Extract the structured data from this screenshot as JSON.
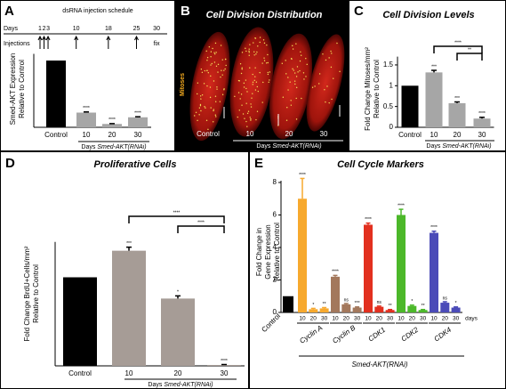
{
  "chart_data": [
    {
      "panel": "A",
      "type": "bar",
      "schedule": {
        "title": "dsRNA injection schedule",
        "days_label": "Days",
        "days": [
          1,
          2,
          3,
          10,
          18,
          25,
          30
        ],
        "injections_label": "Injections",
        "injection_days": [
          1,
          2,
          3,
          10,
          18,
          25
        ],
        "end_label": "fix"
      },
      "ylabel": [
        "Smed-AKT Expression",
        "Relative to Control"
      ],
      "categories": [
        "Control",
        "10",
        "20",
        "30"
      ],
      "values": [
        1,
        0.22,
        0.05,
        0.15
      ],
      "errors": [
        null,
        0.01,
        0.005,
        0.008
      ],
      "colors": [
        "#000000",
        "#a6a6a6",
        "#a6a6a6",
        "#a6a6a6"
      ],
      "significance": [
        null,
        "****",
        "****",
        "****"
      ],
      "ylim": [
        0,
        1.1
      ],
      "xgroup_prefix": "Days",
      "xgroup_name": "Smed-AKT(RNAi)"
    },
    {
      "panel": "B",
      "type": "image",
      "title": "Cell Division Distribution",
      "stain_label": "Mitoses",
      "categories": [
        "Control",
        "10",
        "20",
        "30"
      ],
      "xgroup_prefix": "Days",
      "xgroup_name": "Smed-AKT(RNAi)"
    },
    {
      "panel": "C",
      "type": "bar",
      "title": "Cell Division Levels",
      "ylabel": [
        "Fold Change Mitoses/mm²",
        "Relative to Control"
      ],
      "categories": [
        "Control",
        "10",
        "20",
        "30"
      ],
      "values": [
        1,
        1.32,
        0.58,
        0.21
      ],
      "errors": [
        null,
        0.05,
        0.03,
        0.03
      ],
      "colors": [
        "#000000",
        "#a6a6a6",
        "#a6a6a6",
        "#a6a6a6"
      ],
      "significance": [
        null,
        "***",
        "***",
        "****"
      ],
      "ylim": [
        0,
        1.7
      ],
      "yticks": [
        0,
        0.5,
        1,
        1.5
      ],
      "brackets": [
        {
          "between": [
            "10",
            "30"
          ],
          "label": "****"
        },
        {
          "between": [
            "20",
            "30"
          ],
          "label": "**"
        }
      ],
      "xgroup_prefix": "Days",
      "xgroup_name": "Smed-AKT(RNAi)"
    },
    {
      "panel": "D",
      "type": "bar",
      "title": "Proliferative Cells",
      "ylabel": [
        "Fold Change BrdU+Cells/mm²",
        "Relative to Control"
      ],
      "categories": [
        "Control",
        "10",
        "20",
        "30"
      ],
      "values": [
        1,
        1.3,
        0.76,
        0.01
      ],
      "errors": [
        null,
        0.04,
        0.03,
        0.005
      ],
      "colors": [
        "#000000",
        "#a69c96",
        "#a69c96",
        "#a69c96"
      ],
      "significance": [
        null,
        "***",
        "*",
        "****"
      ],
      "ylim": [
        0,
        1.4
      ],
      "brackets": [
        {
          "between": [
            "10",
            "30"
          ],
          "label": "****"
        },
        {
          "between": [
            "20",
            "30"
          ],
          "label": "****"
        }
      ],
      "xgroup_prefix": "Days",
      "xgroup_name": "Smed-AKT(RNAi)"
    },
    {
      "panel": "E",
      "type": "grouped_bar",
      "title": "Cell Cycle Markers",
      "ylabel": [
        "Fold Change in",
        "Gene  Expression",
        "Relative to Control"
      ],
      "ylim": [
        0,
        8
      ],
      "yticks": [
        0,
        2,
        4,
        6,
        8
      ],
      "control": {
        "name": "Control",
        "value": 1,
        "color": "#000000"
      },
      "days": [
        10,
        20,
        30
      ],
      "days_label": "days",
      "group_label": "Smed-AKT(RNAi)",
      "series": [
        {
          "name": "Cyclin A",
          "color": "#f7a92e",
          "values": [
            7.0,
            0.2,
            0.25
          ],
          "errors": [
            1.25,
            0.05,
            0.05
          ],
          "significance": [
            "****",
            "*",
            "**"
          ]
        },
        {
          "name": "Cyclin B",
          "color": "#a3785c",
          "values": [
            2.2,
            0.5,
            0.3
          ],
          "errors": [
            0.08,
            0.05,
            0.04
          ],
          "significance": [
            "****",
            "ns",
            "***"
          ]
        },
        {
          "name": "CDK1",
          "color": "#e2301f",
          "values": [
            5.4,
            0.35,
            0.15
          ],
          "errors": [
            0.1,
            0.04,
            0.03
          ],
          "significance": [
            "****",
            "ns",
            "**"
          ]
        },
        {
          "name": "CDK2",
          "color": "#4cb82a",
          "values": [
            6.0,
            0.4,
            0.15
          ],
          "errors": [
            0.35,
            0.05,
            0.03
          ],
          "significance": [
            "****",
            "*",
            "**"
          ]
        },
        {
          "name": "CDK4",
          "color": "#4b4bb8",
          "values": [
            4.9,
            0.6,
            0.3
          ],
          "errors": [
            0.1,
            0.06,
            0.04
          ],
          "significance": [
            "****",
            "ns",
            "*"
          ]
        }
      ]
    }
  ]
}
